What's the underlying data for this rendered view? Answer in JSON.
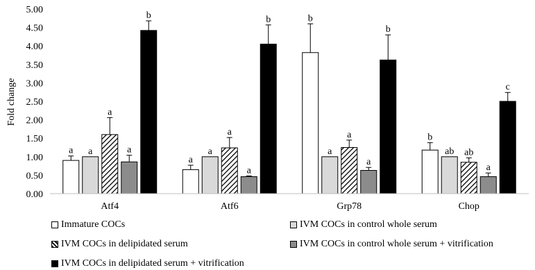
{
  "chart_data": {
    "type": "bar",
    "ylabel": "Fold change",
    "xlabel": "",
    "title": "",
    "ylim": [
      0,
      5
    ],
    "ytick_step": 0.5,
    "ytick_labels": [
      "0.00",
      "0.50",
      "1.00",
      "1.50",
      "2.00",
      "2.50",
      "3.00",
      "3.50",
      "4.00",
      "4.50",
      "5.00"
    ],
    "categories": [
      "Atf4",
      "Atf6",
      "Grp78",
      "Chop"
    ],
    "legend_position": "bottom",
    "series": [
      {
        "name": "Immature COCs",
        "fill": "white",
        "values": [
          0.9,
          0.65,
          3.82,
          1.18
        ],
        "errors": [
          0.12,
          0.12,
          0.78,
          0.2
        ],
        "letters": [
          "a",
          "a",
          "b",
          "b"
        ]
      },
      {
        "name": "IVM COCs in control whole serum",
        "fill": "lightgray",
        "values": [
          1.0,
          1.0,
          1.0,
          1.0
        ],
        "errors": [
          0,
          0,
          0,
          0
        ],
        "letters": [
          "a",
          "a",
          "a",
          "ab"
        ]
      },
      {
        "name": "IVM COCs in delipidated serum",
        "fill": "hatch",
        "values": [
          1.6,
          1.24,
          1.25,
          0.85
        ],
        "errors": [
          0.46,
          0.28,
          0.2,
          0.12
        ],
        "letters": [
          "a",
          "a",
          "a",
          "ab"
        ]
      },
      {
        "name": "IVM COCs in control whole serum + vitrification",
        "fill": "gray",
        "values": [
          0.86,
          0.46,
          0.63,
          0.46
        ],
        "errors": [
          0.18,
          0.02,
          0.08,
          0.1
        ],
        "letters": [
          "a",
          "a",
          "a",
          "a"
        ]
      },
      {
        "name": "IVM COCs in delipidated serum + vitrification",
        "fill": "black",
        "values": [
          4.42,
          4.05,
          3.62,
          2.5
        ],
        "errors": [
          0.26,
          0.52,
          0.68,
          0.24
        ],
        "letters": [
          "b",
          "b",
          "b",
          "c"
        ]
      }
    ]
  },
  "colors": {
    "white": "#ffffff",
    "lightgray": "#d9d9d9",
    "gray": "#8c8c8c",
    "black": "#000000",
    "axis": "#bfbfbf",
    "grid": "#d9d9d9"
  }
}
